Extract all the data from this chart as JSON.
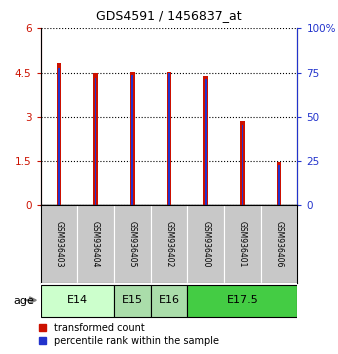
{
  "title": "GDS4591 / 1456837_at",
  "samples": [
    "GSM936403",
    "GSM936404",
    "GSM936405",
    "GSM936402",
    "GSM936400",
    "GSM936401",
    "GSM936406"
  ],
  "red_values": [
    4.82,
    4.5,
    4.52,
    4.52,
    4.38,
    2.85,
    1.48
  ],
  "blue_values": [
    4.65,
    4.33,
    4.42,
    4.5,
    4.28,
    2.72,
    1.38
  ],
  "ylim_left": [
    0,
    6
  ],
  "ylim_right": [
    0,
    100
  ],
  "yticks_left": [
    0,
    1.5,
    3,
    4.5,
    6
  ],
  "yticks_right": [
    0,
    25,
    50,
    75,
    100
  ],
  "red_color": "#cc1100",
  "blue_color": "#2233cc",
  "bar_width": 0.12,
  "background_color": "#ffffff",
  "sample_area_color": "#c8c8c8",
  "age_groups": [
    {
      "label": "E14",
      "start": 0,
      "end": 2,
      "color": "#ccffcc"
    },
    {
      "label": "E15",
      "start": 2,
      "end": 3,
      "color": "#aaddaa"
    },
    {
      "label": "E16",
      "start": 3,
      "end": 4,
      "color": "#aaddaa"
    },
    {
      "label": "E17.5",
      "start": 4,
      "end": 7,
      "color": "#44cc44"
    }
  ],
  "legend_red": "transformed count",
  "legend_blue": "percentile rank within the sample"
}
